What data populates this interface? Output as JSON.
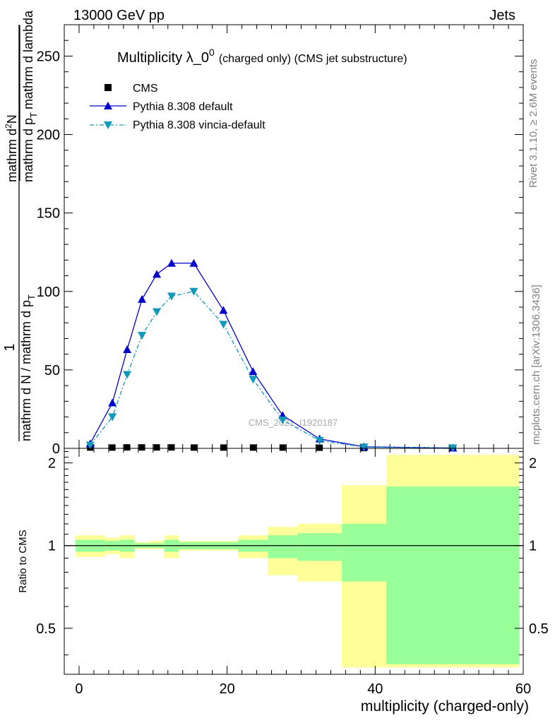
{
  "header": {
    "left": "13000 GeV pp",
    "right": "Jets"
  },
  "side_labels": {
    "rivet": "Rivet 3.1.10, ≥ 2.6M events",
    "mcplots": "mcplots.cern.ch [arXiv:1306.3436]"
  },
  "watermark": "CMS_2021_I1920187",
  "chart_data": [
    {
      "type": "line",
      "title": "Multiplicity λ_0",
      "title_superscript": "0",
      "subtitle": "(charged only) (CMS jet substructure)",
      "ylabel": {
        "numerator": "1",
        "denominator": "mathrm d N / mathrm d p",
        "deriv_numerator": "mathrm d",
        "deriv_numerator_sup": "2",
        "deriv_numerator_tail": "N",
        "deriv_denominator": "mathrm d p",
        "deriv_denominator_tail": "mathrm d lambda",
        "subscript": "T"
      },
      "xlim": [
        -2,
        60
      ],
      "ylim": [
        0,
        270
      ],
      "yticks": [
        0,
        50,
        100,
        150,
        200,
        250
      ],
      "ytick_labels": [
        "0",
        "50",
        "100",
        "150",
        "200",
        "250"
      ],
      "legend_position": "top-left",
      "series": [
        {
          "name": "CMS",
          "marker": "square",
          "color": "#000000",
          "x": [
            1.5,
            4.5,
            6.5,
            8.5,
            10.5,
            12.5,
            15.5,
            19.5,
            23.5,
            27.5,
            32.5,
            38.5,
            50.5
          ],
          "y": [
            0.5,
            0.5,
            0.6,
            0.6,
            0.6,
            0.6,
            0.5,
            0.5,
            0.5,
            0.5,
            0.4,
            0.2,
            0.1
          ]
        },
        {
          "name": "Pythia 8.308 default",
          "marker": "triangle-up",
          "line": "solid",
          "color": "#0000cc",
          "x": [
            1.5,
            4.5,
            6.5,
            8.5,
            10.5,
            12.5,
            15.5,
            19.5,
            23.5,
            27.5,
            32.5,
            38.5,
            50.5
          ],
          "y": [
            3,
            29,
            63,
            95,
            111,
            118,
            118,
            88,
            49,
            21,
            6,
            1,
            0.2
          ]
        },
        {
          "name": "Pythia 8.308 vincia-default",
          "marker": "triangle-down",
          "line": "dash-dot",
          "color": "#1199bb",
          "x": [
            1.5,
            4.5,
            6.5,
            8.5,
            10.5,
            12.5,
            15.5,
            19.5,
            23.5,
            27.5,
            32.5,
            38.5,
            50.5
          ],
          "y": [
            2,
            20,
            47,
            72,
            87,
            97,
            100,
            79,
            44,
            18,
            5,
            0.8,
            0.2
          ]
        }
      ]
    },
    {
      "type": "area",
      "ylabel": "Ratio to CMS",
      "xlabel": "multiplicity (charged-only)",
      "xlim": [
        -2,
        60
      ],
      "ylim": [
        0.34,
        2.26
      ],
      "xticks": [
        0,
        20,
        40,
        60
      ],
      "xtick_labels": [
        "0",
        "20",
        "40",
        "60"
      ],
      "yticks": [
        0.5,
        1,
        2
      ],
      "ytick_labels": [
        "0.5",
        "1",
        "2"
      ],
      "reference_line": 1,
      "bands": {
        "colors": {
          "stat": "#99ff99",
          "total": "#ffff99"
        },
        "bins": [
          {
            "lo": -0.5,
            "hi": 3.5,
            "stat": [
              0.95,
              1.05
            ],
            "total": [
              0.91,
              1.09
            ]
          },
          {
            "lo": 3.5,
            "hi": 5.5,
            "stat": [
              0.96,
              1.04
            ],
            "total": [
              0.93,
              1.07
            ]
          },
          {
            "lo": 5.5,
            "hi": 7.5,
            "stat": [
              0.95,
              1.05
            ],
            "total": [
              0.9,
              1.09
            ]
          },
          {
            "lo": 7.5,
            "hi": 9.5,
            "stat": [
              0.98,
              1.02
            ],
            "total": [
              0.97,
              1.03
            ]
          },
          {
            "lo": 9.5,
            "hi": 11.5,
            "stat": [
              0.98,
              1.02
            ],
            "total": [
              0.97,
              1.04
            ]
          },
          {
            "lo": 11.5,
            "hi": 13.5,
            "stat": [
              0.95,
              1.05
            ],
            "total": [
              0.9,
              1.09
            ]
          },
          {
            "lo": 13.5,
            "hi": 17.5,
            "stat": [
              0.97,
              1.03
            ],
            "total": [
              0.96,
              1.04
            ]
          },
          {
            "lo": 17.5,
            "hi": 21.5,
            "stat": [
              0.97,
              1.03
            ],
            "total": [
              0.96,
              1.04
            ]
          },
          {
            "lo": 21.5,
            "hi": 25.5,
            "stat": [
              0.95,
              1.05
            ],
            "total": [
              0.9,
              1.09
            ]
          },
          {
            "lo": 25.5,
            "hi": 29.5,
            "stat": [
              0.9,
              1.09
            ],
            "total": [
              0.78,
              1.17
            ]
          },
          {
            "lo": 29.5,
            "hi": 35.5,
            "stat": [
              0.88,
              1.11
            ],
            "total": [
              0.74,
              1.2
            ]
          },
          {
            "lo": 35.5,
            "hi": 41.5,
            "stat": [
              0.74,
              1.2
            ],
            "total": [
              0.36,
              1.66
            ]
          },
          {
            "lo": 41.5,
            "hi": 59.5,
            "stat": [
              0.37,
              1.64
            ],
            "total": [
              0.36,
              2.14
            ]
          }
        ]
      }
    }
  ]
}
